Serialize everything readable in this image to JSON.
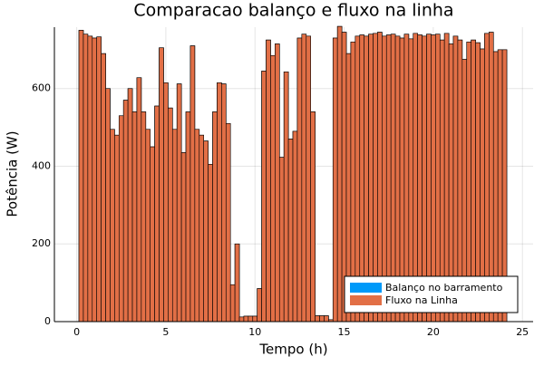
{
  "chart_data": {
    "type": "bar",
    "title": "Comparacao balanço e fluxo na linha",
    "x_label": "Tempo (h)",
    "y_label": "Potência (W)",
    "x": [
      0.25,
      0.5,
      0.75,
      1,
      1.25,
      1.5,
      1.75,
      2,
      2.25,
      2.5,
      2.75,
      3,
      3.25,
      3.5,
      3.75,
      4,
      4.25,
      4.5,
      4.75,
      5,
      5.25,
      5.5,
      5.75,
      6,
      6.25,
      6.5,
      6.75,
      7,
      7.25,
      7.5,
      7.75,
      8,
      8.25,
      8.5,
      8.75,
      9,
      9.25,
      9.5,
      9.75,
      10,
      10.25,
      10.5,
      10.75,
      11,
      11.25,
      11.5,
      11.75,
      12,
      12.25,
      12.5,
      12.75,
      13,
      13.25,
      13.5,
      13.75,
      14,
      14.25,
      14.5,
      14.75,
      15,
      15.25,
      15.5,
      15.75,
      16,
      16.25,
      16.5,
      16.75,
      17,
      17.25,
      17.5,
      17.75,
      18,
      18.25,
      18.5,
      18.75,
      19,
      19.25,
      19.5,
      19.75,
      20,
      20.25,
      20.5,
      20.75,
      21,
      21.25,
      21.5,
      21.75,
      22,
      22.25,
      22.5,
      22.75,
      23,
      23.25,
      23.5,
      23.75,
      24
    ],
    "series": [
      {
        "name": "Balanço no barramento",
        "color": "#009af9",
        "values": [
          750,
          740,
          735,
          730,
          733,
          690,
          600,
          495,
          480,
          530,
          570,
          600,
          540,
          628,
          540,
          495,
          450,
          555,
          705,
          615,
          550,
          495,
          612,
          435,
          540,
          710,
          495,
          480,
          465,
          405,
          540,
          615,
          612,
          510,
          95,
          200,
          12,
          14,
          14,
          14,
          85,
          645,
          725,
          685,
          715,
          423,
          643,
          470,
          490,
          730,
          740,
          735,
          540,
          15,
          15,
          15,
          5,
          730,
          760,
          745,
          690,
          720,
          735,
          738,
          735,
          740,
          742,
          745,
          735,
          738,
          740,
          735,
          730,
          740,
          728,
          742,
          738,
          735,
          740,
          738,
          740,
          725,
          742,
          715,
          735,
          725,
          675,
          720,
          725,
          718,
          702,
          742,
          745,
          695,
          700,
          700
        ]
      },
      {
        "name": "Fluxo na Linha",
        "color": "#e26f46",
        "values": [
          750,
          740,
          735,
          730,
          733,
          690,
          600,
          495,
          480,
          530,
          570,
          600,
          540,
          628,
          540,
          495,
          450,
          555,
          705,
          615,
          550,
          495,
          612,
          435,
          540,
          710,
          495,
          480,
          465,
          405,
          540,
          615,
          612,
          510,
          95,
          200,
          12,
          14,
          14,
          14,
          85,
          645,
          725,
          685,
          715,
          423,
          643,
          470,
          490,
          730,
          740,
          735,
          540,
          15,
          15,
          15,
          5,
          730,
          760,
          745,
          690,
          720,
          735,
          738,
          735,
          740,
          742,
          745,
          735,
          738,
          740,
          735,
          730,
          740,
          728,
          742,
          738,
          735,
          740,
          738,
          740,
          725,
          742,
          715,
          735,
          725,
          675,
          720,
          725,
          718,
          702,
          742,
          745,
          695,
          700,
          700
        ]
      }
    ],
    "bar_width": 0.25,
    "xlim": [
      -1.25,
      25.6
    ],
    "xticks": [
      0,
      5,
      10,
      15,
      20,
      25
    ],
    "ylim": [
      0,
      758
    ],
    "yticks": [
      0,
      200,
      400,
      600
    ],
    "grid": true,
    "legend": "bottom-right"
  }
}
